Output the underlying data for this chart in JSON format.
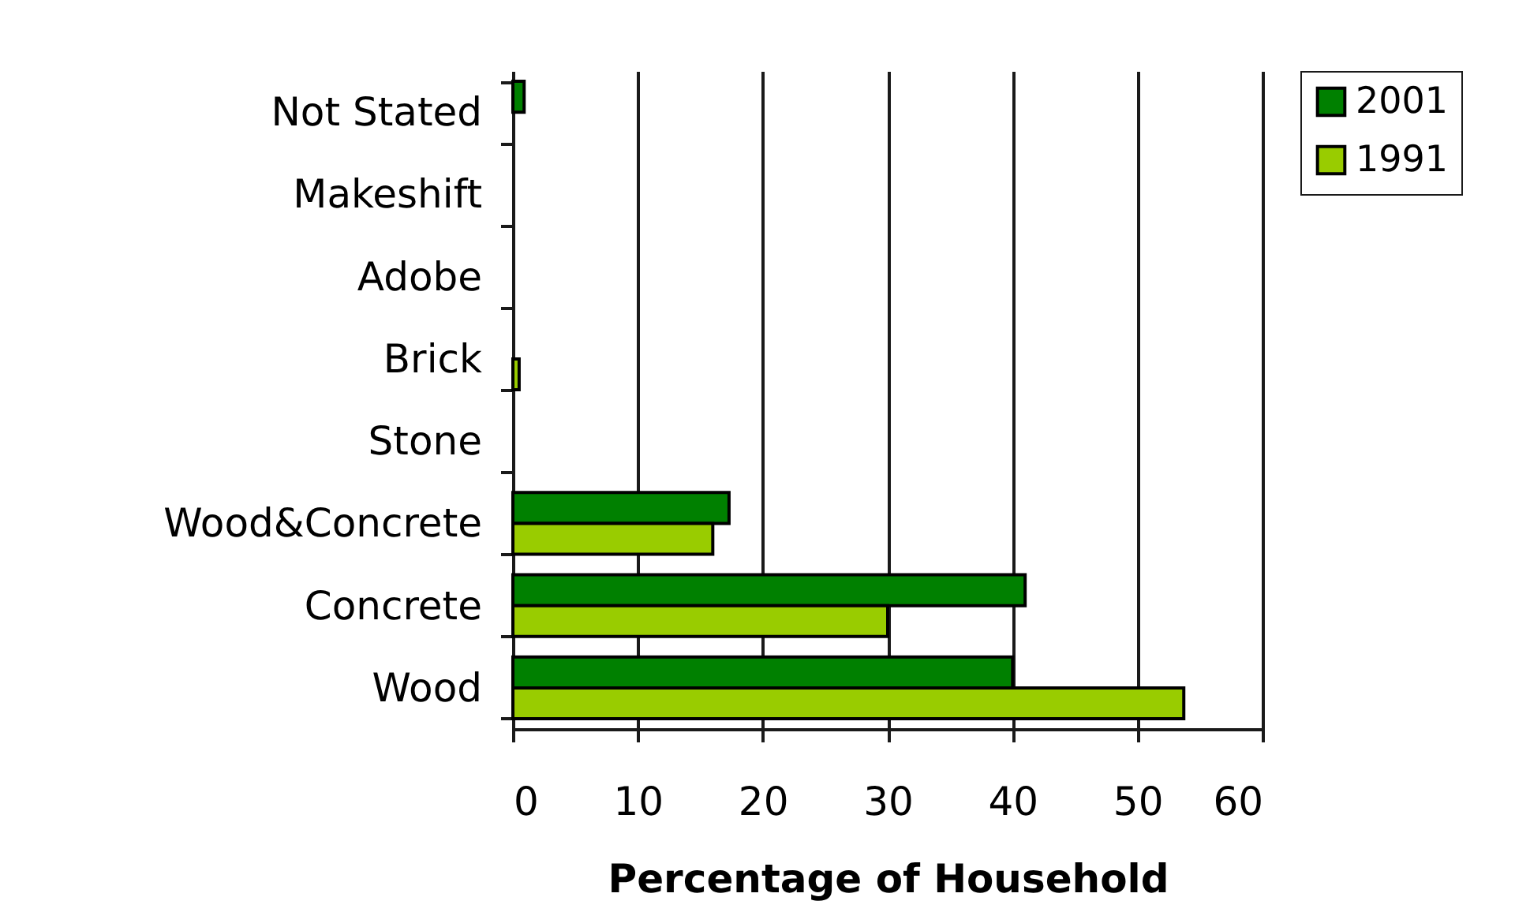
{
  "chart_data": {
    "type": "bar",
    "orientation": "horizontal",
    "xlabel": "Percentage of Household",
    "categories": [
      "Not Stated",
      "Makeshift",
      "Adobe",
      "Brick",
      "Stone",
      "Wood&Concrete",
      "Concrete",
      "Wood"
    ],
    "series": [
      {
        "name": "2001",
        "color": "#008000",
        "values": [
          0.9,
          null,
          null,
          null,
          null,
          17.3,
          41.0,
          40.0
        ]
      },
      {
        "name": "1991",
        "color": "#99cc00",
        "values": [
          null,
          null,
          null,
          0.5,
          null,
          16.0,
          30.0,
          53.7
        ]
      }
    ],
    "xlim": [
      0,
      60
    ],
    "xticks": [
      0,
      10,
      20,
      30,
      40,
      50,
      60
    ],
    "grid": "x",
    "legend": "right"
  }
}
